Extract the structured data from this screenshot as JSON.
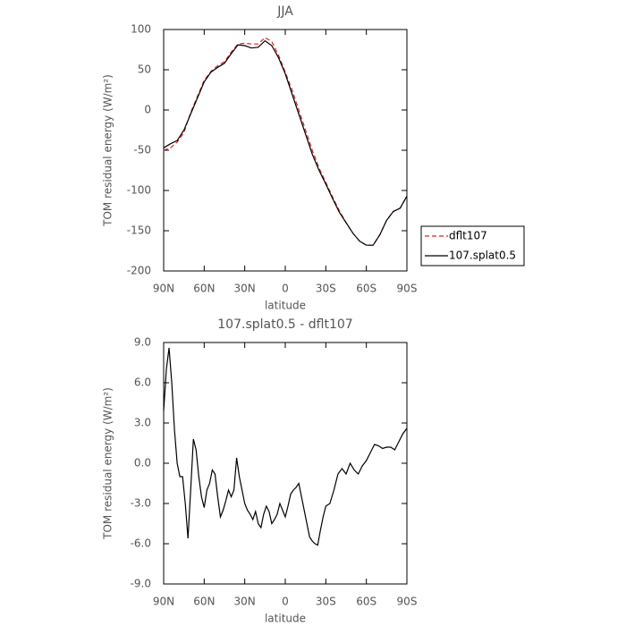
{
  "chart_data": [
    {
      "type": "line",
      "title": "JJA",
      "xlabel": "latitude",
      "ylabel": "TOM residual energy (W/m²)",
      "x": [
        90,
        85,
        80,
        75,
        70,
        65,
        60,
        55,
        50,
        45,
        40,
        35,
        30,
        25,
        20,
        15,
        10,
        5,
        0,
        -5,
        -10,
        -15,
        -20,
        -25,
        -30,
        -35,
        -40,
        -45,
        -50,
        -55,
        -60,
        -65,
        -70,
        -75,
        -80,
        -85,
        -90
      ],
      "series": [
        {
          "name": "dflt107",
          "color": "#e02020",
          "style": "dashed",
          "values": [
            -50,
            -47,
            -40,
            -28,
            -3,
            17,
            37,
            48,
            55,
            60,
            72,
            82,
            83,
            82,
            82,
            90,
            85,
            68,
            47,
            25,
            0,
            -25,
            -50,
            -72,
            -90,
            -108,
            -125,
            -140,
            -153,
            -163,
            -168,
            -168,
            -155,
            -137,
            -126,
            -122,
            -107
          ]
        },
        {
          "name": "107.splat0.5",
          "color": "#000000",
          "style": "solid",
          "values": [
            -47,
            -42,
            -38,
            -25,
            -5,
            15,
            35,
            47,
            53,
            58,
            70,
            81,
            80,
            77,
            78,
            86,
            80,
            65,
            45,
            20,
            -5,
            -30,
            -55,
            -75,
            -92,
            -110,
            -127,
            -140,
            -153,
            -163,
            -168,
            -168,
            -155,
            -137,
            -126,
            -122,
            -107
          ]
        }
      ],
      "xlim": [
        90,
        -90
      ],
      "xticks": [
        {
          "value": 90,
          "label": "90N"
        },
        {
          "value": 60,
          "label": "60N"
        },
        {
          "value": 30,
          "label": "30N"
        },
        0,
        {
          "value": -30,
          "label": "30S"
        },
        {
          "value": -60,
          "label": "60S"
        },
        {
          "value": -90,
          "label": "90S"
        }
      ],
      "ylim": [
        -200,
        100
      ],
      "yticks": [
        -200,
        -150,
        -100,
        -50,
        0,
        50,
        100
      ],
      "legend": "right"
    },
    {
      "type": "line",
      "title": "107.splat0.5 - dflt107",
      "xlabel": "latitude",
      "ylabel": "TOM residual energy (W/m²)",
      "x": [
        90,
        88,
        86,
        84,
        82,
        80,
        78,
        76,
        74,
        72,
        70,
        68,
        66,
        64,
        62,
        60,
        58,
        56,
        54,
        52,
        50,
        48,
        46,
        44,
        42,
        40,
        38,
        36,
        34,
        32,
        30,
        28,
        26,
        24,
        22,
        20,
        18,
        16,
        14,
        12,
        10,
        8,
        6,
        4,
        2,
        0,
        -2,
        -4,
        -6,
        -8,
        -10,
        -12,
        -14,
        -16,
        -18,
        -20,
        -22,
        -24,
        -26,
        -28,
        -30,
        -33,
        -36,
        -39,
        -42,
        -45,
        -48,
        -51,
        -54,
        -57,
        -60,
        -63,
        -66,
        -69,
        -72,
        -75,
        -78,
        -81,
        -84,
        -87,
        -90
      ],
      "series": [
        {
          "color": "#000000",
          "style": "solid",
          "values": [
            3.9,
            7.0,
            8.6,
            6.0,
            2.5,
            0.0,
            -1.0,
            -1.0,
            -3.0,
            -5.6,
            -2.0,
            1.8,
            1.0,
            -1.0,
            -2.5,
            -3.3,
            -2.0,
            -1.5,
            -0.5,
            -0.8,
            -2.5,
            -4.0,
            -3.5,
            -2.8,
            -2.0,
            -2.5,
            -2.0,
            0.4,
            -1.0,
            -2.0,
            -3.0,
            -3.5,
            -3.8,
            -4.2,
            -3.6,
            -4.5,
            -4.8,
            -3.8,
            -3.2,
            -3.6,
            -4.5,
            -4.2,
            -3.8,
            -3.0,
            -3.5,
            -4.0,
            -3.2,
            -2.3,
            -2.0,
            -1.8,
            -1.5,
            -2.5,
            -3.5,
            -4.5,
            -5.5,
            -5.8,
            -6.0,
            -6.1,
            -5.0,
            -4.0,
            -3.2,
            -3.0,
            -2.0,
            -0.8,
            -0.4,
            -0.8,
            0.0,
            -0.5,
            -0.8,
            -0.2,
            0.2,
            0.8,
            1.4,
            1.3,
            1.1,
            1.2,
            1.2,
            1.0,
            1.6,
            2.2,
            2.6
          ]
        }
      ],
      "xlim": [
        90,
        -90
      ],
      "xticks": [
        {
          "value": 90,
          "label": "90N"
        },
        {
          "value": 60,
          "label": "60N"
        },
        {
          "value": 30,
          "label": "30N"
        },
        0,
        {
          "value": -30,
          "label": "30S"
        },
        {
          "value": -60,
          "label": "60S"
        },
        {
          "value": -90,
          "label": "90S"
        }
      ],
      "ylim": [
        -9,
        9
      ],
      "yticks": [
        {
          "value": -9,
          "label": "-9.0"
        },
        {
          "value": -6,
          "label": "-6.0"
        },
        {
          "value": -3,
          "label": "-3.0"
        },
        {
          "value": 0,
          "label": "0.0"
        },
        {
          "value": 3,
          "label": "3.0"
        },
        {
          "value": 6,
          "label": "6.0"
        },
        {
          "value": 9,
          "label": "9.0"
        }
      ]
    }
  ]
}
